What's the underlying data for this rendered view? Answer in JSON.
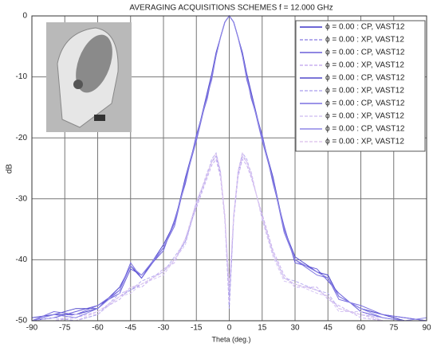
{
  "chart_data": {
    "type": "line",
    "title": "AVERAGING ACQUISITIONS SCHEMES   f = 12.000 GHz",
    "x_label": "Theta (deg.)",
    "y_label": "dB",
    "xlim": [
      -90,
      90
    ],
    "ylim": [
      -50,
      0
    ],
    "xticks": [
      -90,
      -75,
      -60,
      -45,
      -30,
      -15,
      0,
      15,
      30,
      45,
      60,
      75,
      90
    ],
    "yticks": [
      -50,
      -40,
      -30,
      -20,
      -10,
      0
    ],
    "grid": true,
    "legend_position": "upper right",
    "x": [
      -90,
      -80,
      -70,
      -60,
      -50,
      -45,
      -40,
      -30,
      -25,
      -20,
      -15,
      -10,
      -8,
      -6,
      -4,
      -2,
      0,
      2,
      4,
      6,
      8,
      10,
      15,
      20,
      25,
      30,
      40,
      45,
      50,
      60,
      70,
      80,
      90
    ],
    "series": [
      {
        "name": "ϕ = 0.00 : CP, VAST12",
        "color": "#3f35c8",
        "line_style": "solid",
        "values": [
          -50,
          -49,
          -49,
          -48,
          -45,
          -41,
          -43,
          -38,
          -34,
          -27,
          -20,
          -13,
          -10,
          -6.5,
          -3.5,
          -1,
          0,
          -1,
          -3.5,
          -6.5,
          -10,
          -13,
          -20,
          -27,
          -35,
          -40,
          -42,
          -43,
          -46,
          -48,
          -49,
          -50,
          -50
        ]
      },
      {
        "name": "ϕ = 0.00 : XP, VAST12",
        "color": "#9b90e6",
        "line_style": "dashed",
        "values": [
          -50,
          -50,
          -50,
          -49,
          -46,
          -45,
          -44,
          -42,
          -40,
          -37,
          -31,
          -26,
          -24,
          -23,
          -26,
          -33,
          -48,
          -33,
          -26,
          -23,
          -24,
          -26,
          -33,
          -39,
          -43,
          -44,
          -45,
          -46,
          -48,
          -49,
          -50,
          -50,
          -50
        ]
      },
      {
        "name": "ϕ = 0.00 : CP, VAST12",
        "color": "#6a5fd8",
        "line_style": "solid",
        "values": [
          -50,
          -49.5,
          -48.5,
          -47.5,
          -45.5,
          -41.5,
          -42.5,
          -38.5,
          -33.5,
          -27.5,
          -19.5,
          -13.5,
          -10,
          -6.5,
          -3.5,
          -1,
          0,
          -1,
          -3.5,
          -6.5,
          -10,
          -13.5,
          -19.5,
          -27.5,
          -34.5,
          -40.5,
          -41.5,
          -43.5,
          -45.5,
          -48.5,
          -49.5,
          -50,
          -50
        ]
      },
      {
        "name": "ϕ = 0.00 : XP, VAST12",
        "color": "#c8b0f0",
        "line_style": "dashed",
        "values": [
          -50,
          -50,
          -49.5,
          -48.5,
          -46.5,
          -44.5,
          -44.5,
          -41.5,
          -40.5,
          -36.5,
          -31.5,
          -26.5,
          -24.5,
          -23.5,
          -26.5,
          -33.5,
          -47,
          -33.5,
          -26.5,
          -23.5,
          -24.5,
          -26.5,
          -32.5,
          -38.5,
          -42.5,
          -44.5,
          -44.5,
          -46.5,
          -47.5,
          -49.5,
          -50,
          -50,
          -50
        ]
      },
      {
        "name": "ϕ = 0.00 : CP, VAST12",
        "color": "#5048cc",
        "line_style": "solid",
        "values": [
          -49.5,
          -49,
          -48,
          -48,
          -44.5,
          -41,
          -43,
          -37.5,
          -34,
          -26.5,
          -20,
          -12.5,
          -9.5,
          -6,
          -3.5,
          -1,
          0,
          -1,
          -3.5,
          -6,
          -9.5,
          -12.5,
          -20,
          -26.5,
          -35,
          -39.5,
          -42,
          -42.5,
          -46,
          -48,
          -49,
          -49.5,
          -50
        ]
      },
      {
        "name": "ϕ = 0.00 : XP, VAST12",
        "color": "#b7aef0",
        "line_style": "dashed",
        "values": [
          -50,
          -49.5,
          -50,
          -49,
          -45.5,
          -45,
          -43.5,
          -42,
          -39.5,
          -37,
          -30.5,
          -26,
          -23.5,
          -22.5,
          -25.5,
          -33,
          -46,
          -33,
          -25.5,
          -22.5,
          -23.5,
          -26,
          -33,
          -39,
          -43,
          -43.5,
          -45,
          -45.5,
          -48,
          -49,
          -49.5,
          -50,
          -50
        ]
      },
      {
        "name": "ϕ = 0.00 : CP, VAST12",
        "color": "#7b70e0",
        "line_style": "solid",
        "values": [
          -50,
          -48.5,
          -49,
          -47.5,
          -45,
          -40.5,
          -43,
          -38,
          -34.5,
          -27,
          -20.5,
          -13,
          -10.5,
          -6.5,
          -3.5,
          -1,
          0,
          -1,
          -3.5,
          -6.5,
          -10.5,
          -13,
          -20.5,
          -27,
          -35.5,
          -40,
          -42.5,
          -43,
          -46.5,
          -47.5,
          -49,
          -49.5,
          -50
        ]
      },
      {
        "name": "ϕ = 0.00 : XP, VAST12",
        "color": "#d6c6f4",
        "line_style": "dashed",
        "values": [
          -50,
          -50,
          -49,
          -49,
          -46,
          -45.5,
          -44,
          -42.5,
          -40,
          -37.5,
          -31,
          -25.5,
          -24,
          -23,
          -26,
          -32.5,
          -45,
          -32.5,
          -26,
          -23,
          -24,
          -25.5,
          -33.5,
          -39.5,
          -43.5,
          -44,
          -45.5,
          -46,
          -48.5,
          -48.5,
          -50,
          -50,
          -50
        ]
      },
      {
        "name": "ϕ = 0.00 : CP, VAST12",
        "color": "#8d86e6",
        "line_style": "solid",
        "values": [
          -50,
          -49,
          -49.5,
          -48,
          -45,
          -41,
          -42.5,
          -38,
          -34,
          -27,
          -20,
          -13,
          -10,
          -6.5,
          -3.5,
          -1,
          0,
          -1,
          -3.5,
          -6.5,
          -10,
          -13,
          -20,
          -27,
          -35,
          -40,
          -42,
          -43,
          -46,
          -48,
          -49.5,
          -50,
          -49.5
        ]
      },
      {
        "name": "ϕ = 0.00 : XP, VAST12",
        "color": "#e0c8ee",
        "line_style": "dashed",
        "values": [
          -50,
          -50,
          -50,
          -48.5,
          -46,
          -44.5,
          -44,
          -42,
          -40,
          -36.5,
          -30.5,
          -26,
          -24,
          -22.5,
          -25.5,
          -33,
          -44,
          -33,
          -25.5,
          -22.5,
          -24,
          -26,
          -33,
          -39,
          -43,
          -44,
          -45,
          -46,
          -48,
          -49,
          -50,
          -50,
          -50
        ]
      }
    ]
  }
}
